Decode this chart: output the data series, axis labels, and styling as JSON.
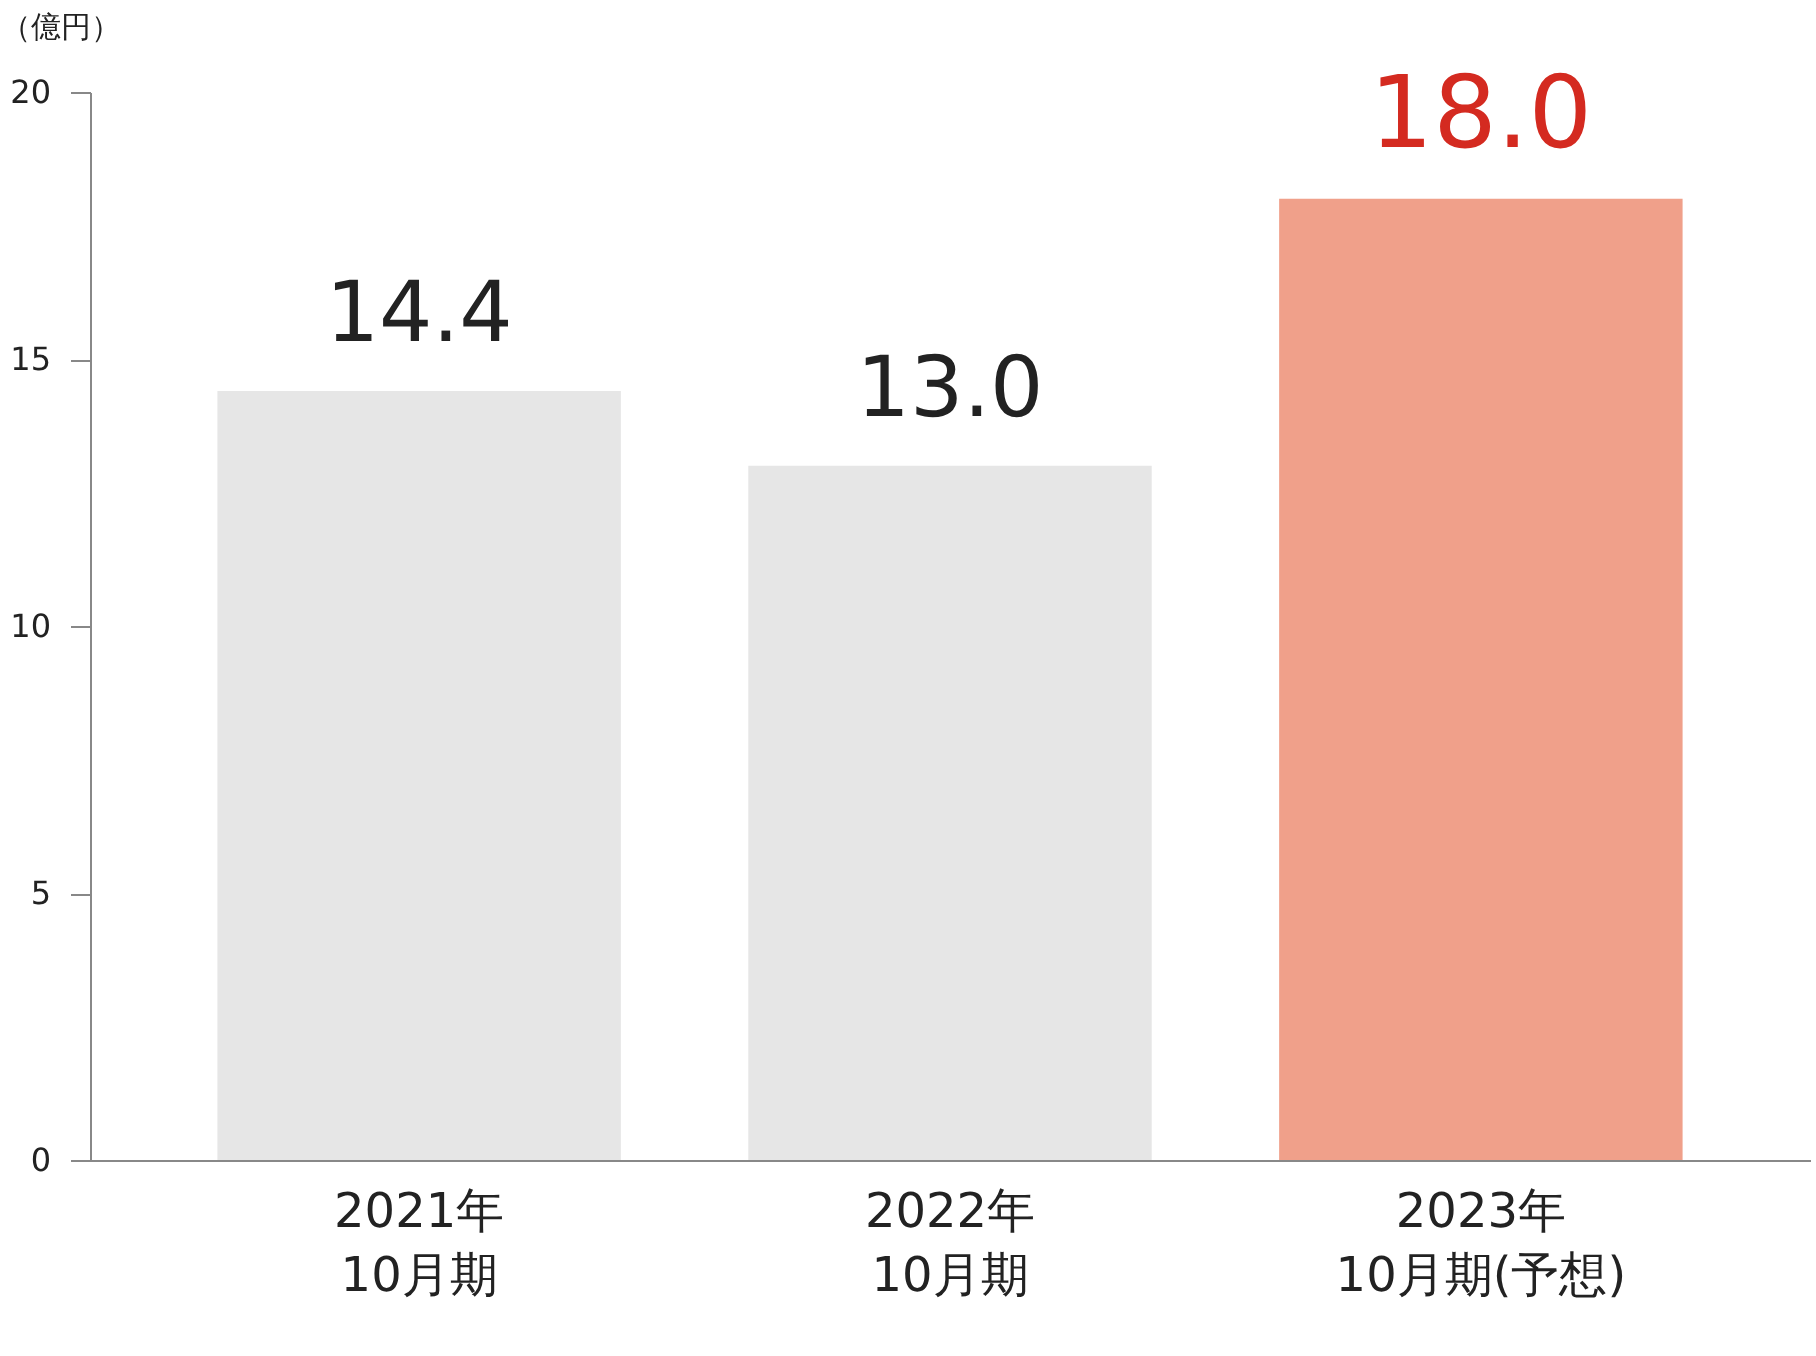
{
  "chart_data": {
    "type": "bar",
    "ylabel": "（億円）",
    "categories": [
      "2021年\n10月期",
      "2022年\n10月期",
      "2023年\n10月期(予想)"
    ],
    "values": [
      14.4,
      13.0,
      18.0
    ],
    "colors": [
      "#e6e6e6",
      "#e6e6e6",
      "#f0a08a"
    ],
    "value_labels": [
      "14.4",
      "13.0",
      "18.0"
    ],
    "ylim": [
      0,
      20
    ],
    "yticks": [
      0,
      5,
      10,
      15,
      20
    ],
    "grid": false
  }
}
